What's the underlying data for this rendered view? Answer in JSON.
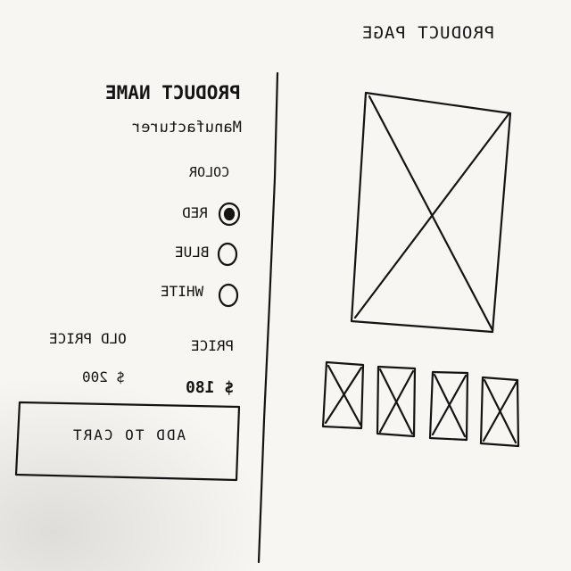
{
  "page": {
    "title": "PRODUCT PAGE"
  },
  "product": {
    "name": "PRODUCT NAME",
    "manufacturer": "Manufacturer"
  },
  "color": {
    "label": "COLOR",
    "options": [
      {
        "label": "RED",
        "selected": true
      },
      {
        "label": "BLUE",
        "selected": false
      },
      {
        "label": "WHITE",
        "selected": false
      }
    ]
  },
  "pricing": {
    "price_label": "PRICE",
    "old_price_label": "OLD PRICE",
    "price": "$ 180",
    "old_price": "$ 200"
  },
  "cart": {
    "button_label": "ADD TO CART"
  },
  "gallery": {
    "thumbnail_count": 4
  }
}
